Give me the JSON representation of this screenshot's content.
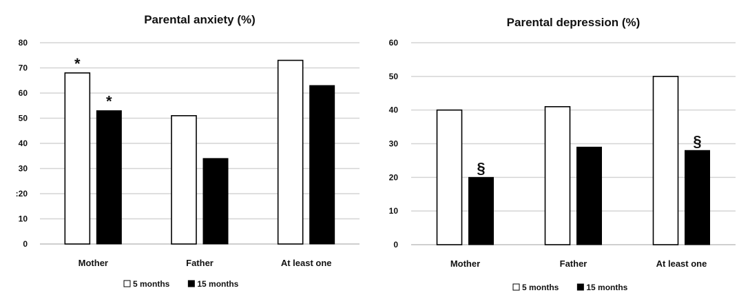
{
  "chart_data": [
    {
      "type": "bar",
      "title": "Parental anxiety (%)",
      "categories": [
        "Mother",
        "Father",
        "At least one"
      ],
      "series": [
        {
          "name": "5 months",
          "values": [
            68,
            51,
            73
          ],
          "color": "#ffffff"
        },
        {
          "name": "15 months",
          "values": [
            53,
            34,
            63
          ],
          "color": "#000000"
        }
      ],
      "ylim": [
        0,
        80
      ],
      "yticks": [
        0,
        10,
        20,
        30,
        40,
        50,
        60,
        70,
        80
      ],
      "ytick_labels": [
        "0",
        "10",
        ":20",
        "30",
        "40",
        "50",
        "60",
        "70",
        "80"
      ],
      "grid": true,
      "legend": "bottom",
      "annotations": [
        {
          "category": 0,
          "series": 0,
          "text": "*"
        },
        {
          "category": 0,
          "series": 1,
          "text": "*"
        }
      ]
    },
    {
      "type": "bar",
      "title": "Parental depression (%)",
      "categories": [
        "Mother",
        "Father",
        "At least one"
      ],
      "series": [
        {
          "name": "5 months",
          "values": [
            40,
            41,
            50
          ],
          "color": "#ffffff"
        },
        {
          "name": "15 months",
          "values": [
            20,
            29,
            28
          ],
          "color": "#000000"
        }
      ],
      "ylim": [
        0,
        60
      ],
      "yticks": [
        0,
        10,
        20,
        30,
        40,
        50,
        60
      ],
      "ytick_labels": [
        "0",
        "10",
        "20",
        "30",
        "40",
        "50",
        "60"
      ],
      "grid": true,
      "legend": "bottom",
      "annotations": [
        {
          "category": 0,
          "series": 1,
          "text": "§"
        },
        {
          "category": 2,
          "series": 1,
          "text": "§"
        }
      ]
    }
  ]
}
